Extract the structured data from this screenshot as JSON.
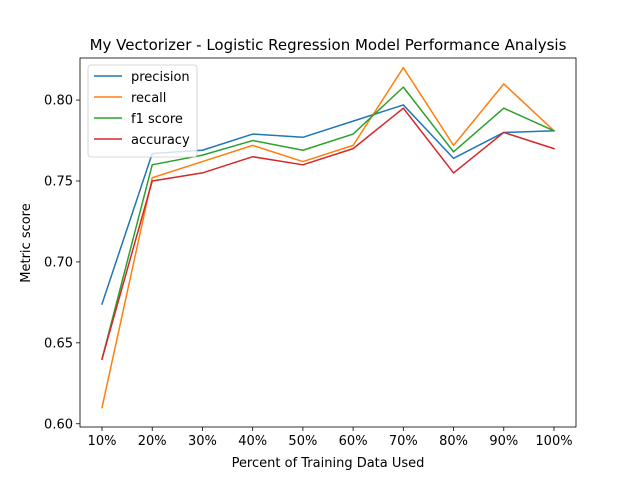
{
  "chart_data": {
    "type": "line",
    "title": "My Vectorizer - Logistic Regression Model Performance Analysis",
    "xlabel": "Percent of Training Data Used",
    "ylabel": "Metric score",
    "categories": [
      "10%",
      "20%",
      "30%",
      "40%",
      "50%",
      "60%",
      "70%",
      "80%",
      "90%",
      "100%"
    ],
    "ylim": [
      0.598,
      0.826
    ],
    "yticks": [
      "0.60",
      "0.65",
      "0.70",
      "0.75",
      "0.80"
    ],
    "ytick_values": [
      0.6,
      0.65,
      0.7,
      0.75,
      0.8
    ],
    "grid": false,
    "legend_position": "top-left",
    "series": [
      {
        "name": "precision",
        "color": "#1f77b4",
        "values": [
          0.674,
          0.767,
          0.769,
          0.779,
          0.777,
          0.787,
          0.797,
          0.764,
          0.78,
          0.781
        ]
      },
      {
        "name": "recall",
        "color": "#ff7f0e",
        "values": [
          0.61,
          0.752,
          0.762,
          0.772,
          0.762,
          0.772,
          0.82,
          0.772,
          0.81,
          0.781
        ]
      },
      {
        "name": "f1 score",
        "color": "#2ca02c",
        "values": [
          0.64,
          0.76,
          0.766,
          0.775,
          0.769,
          0.779,
          0.808,
          0.768,
          0.795,
          0.781
        ]
      },
      {
        "name": "accuracy",
        "color": "#d62728",
        "values": [
          0.64,
          0.75,
          0.755,
          0.765,
          0.76,
          0.77,
          0.795,
          0.755,
          0.78,
          0.77
        ]
      }
    ]
  }
}
